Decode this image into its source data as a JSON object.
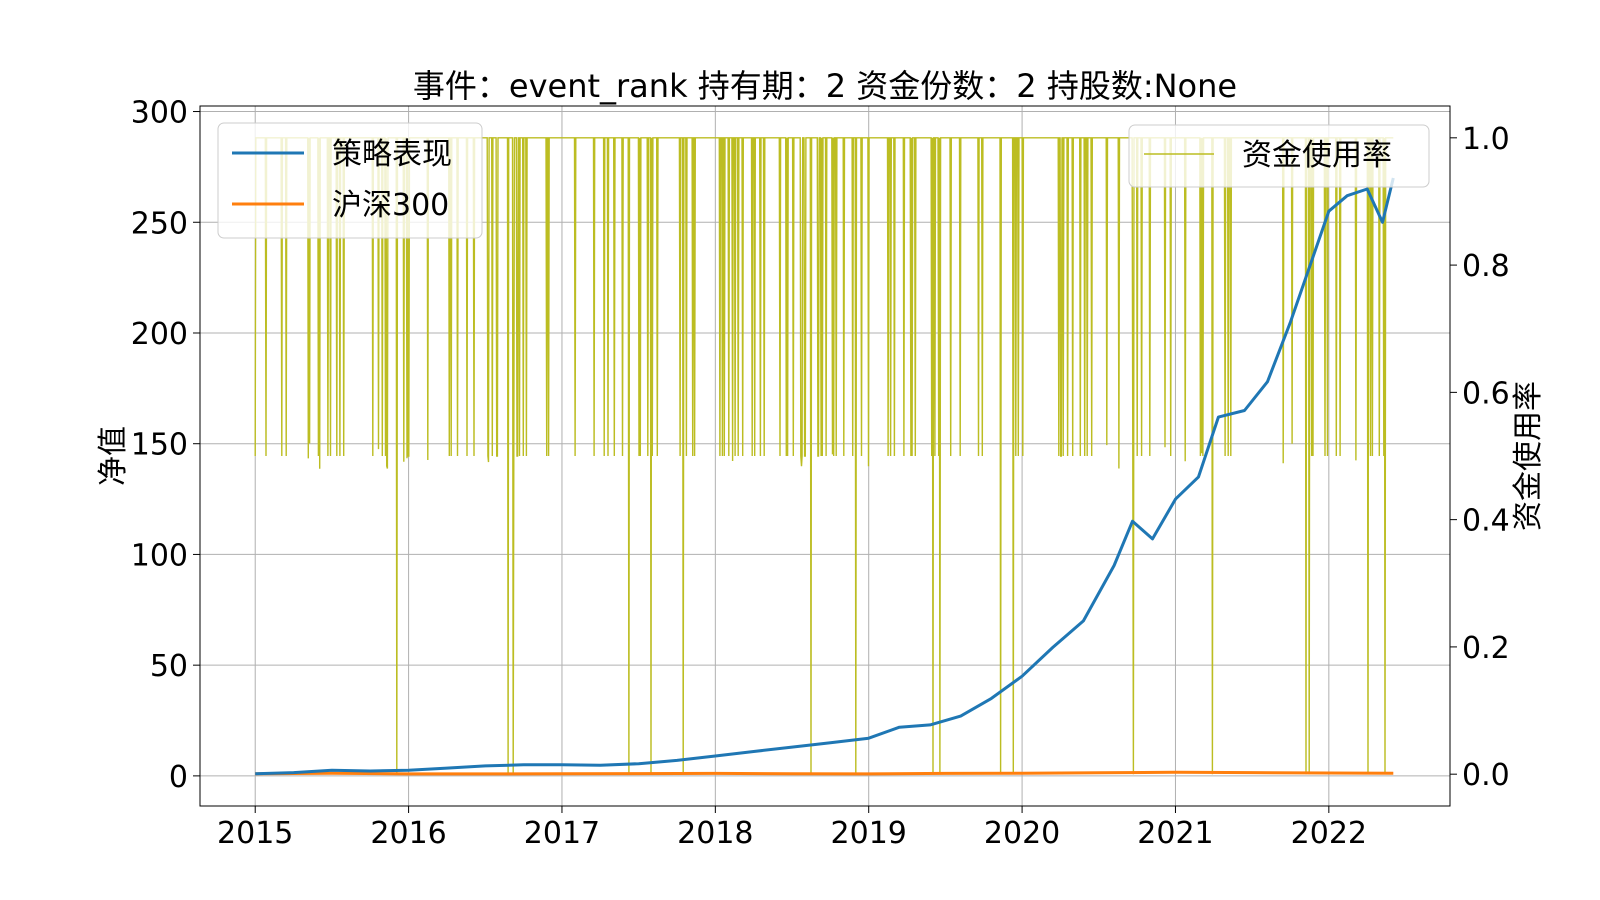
{
  "chart_data": {
    "type": "line",
    "title": "事件：event_rank 持有期：2 资金份数：2 持股数:None",
    "xlabel": "",
    "ylabel": "净值",
    "y2label": "资金使用率",
    "x_ticks": [
      "2015",
      "2016",
      "2017",
      "2018",
      "2019",
      "2020",
      "2021",
      "2022"
    ],
    "xlim": [
      2014.64,
      2022.79
    ],
    "ylim": [
      -13.6,
      302.5
    ],
    "y_ticks": [
      0,
      50,
      100,
      150,
      200,
      250,
      300
    ],
    "y2lim": [
      -0.05,
      1.05
    ],
    "y2_ticks": [
      "0.0",
      "0.2",
      "0.4",
      "0.6",
      "0.8",
      "1.0"
    ],
    "grid": true,
    "legend_left": {
      "placement": "upper-left",
      "entries": [
        "策略表现",
        "沪深300"
      ]
    },
    "legend_right": {
      "placement": "upper-right",
      "entries": [
        "资金使用率"
      ]
    },
    "colors": {
      "strategy": "#1f77b4",
      "hs300": "#ff7f0e",
      "usage": "#bcbd22",
      "grid": "#b0b0b0"
    },
    "series": [
      {
        "name": "策略表现",
        "axis": "left",
        "color": "#1f77b4",
        "x": [
          2015.0,
          2015.25,
          2015.5,
          2015.75,
          2016.0,
          2016.25,
          2016.5,
          2016.75,
          2017.0,
          2017.25,
          2017.5,
          2017.75,
          2018.0,
          2018.25,
          2018.5,
          2018.75,
          2019.0,
          2019.2,
          2019.4,
          2019.6,
          2019.8,
          2020.0,
          2020.2,
          2020.4,
          2020.6,
          2020.72,
          2020.85,
          2021.0,
          2021.15,
          2021.28,
          2021.45,
          2021.6,
          2021.75,
          2021.9,
          2022.0,
          2022.12,
          2022.25,
          2022.35,
          2022.42
        ],
        "values": [
          1,
          1.5,
          2.5,
          2.2,
          2.5,
          3.5,
          4.5,
          5.0,
          5.0,
          4.8,
          5.5,
          7.0,
          9.0,
          11.0,
          13.0,
          15.0,
          17.0,
          22.0,
          23.0,
          27.0,
          35.0,
          45.0,
          58.0,
          70.0,
          95.0,
          115.0,
          107.0,
          125.0,
          135.0,
          162.0,
          165.0,
          178.0,
          205.0,
          235.0,
          255.0,
          262.0,
          265.0,
          250.0,
          270.0
        ]
      },
      {
        "name": "沪深300",
        "axis": "left",
        "color": "#ff7f0e",
        "x": [
          2015.0,
          2015.5,
          2016.0,
          2016.5,
          2017.0,
          2017.5,
          2018.0,
          2018.5,
          2019.0,
          2019.5,
          2020.0,
          2020.5,
          2021.0,
          2021.5,
          2022.0,
          2022.42
        ],
        "values": [
          1.0,
          1.2,
          0.9,
          0.9,
          0.95,
          1.05,
          1.1,
          0.95,
          0.9,
          1.1,
          1.2,
          1.4,
          1.6,
          1.5,
          1.3,
          1.2
        ]
      },
      {
        "name": "资金使用率",
        "axis": "right",
        "color": "#bcbd22",
        "x_range": [
          2015.0,
          2022.42
        ],
        "levels": [
          0.0,
          0.5,
          1.0
        ]
      }
    ]
  }
}
